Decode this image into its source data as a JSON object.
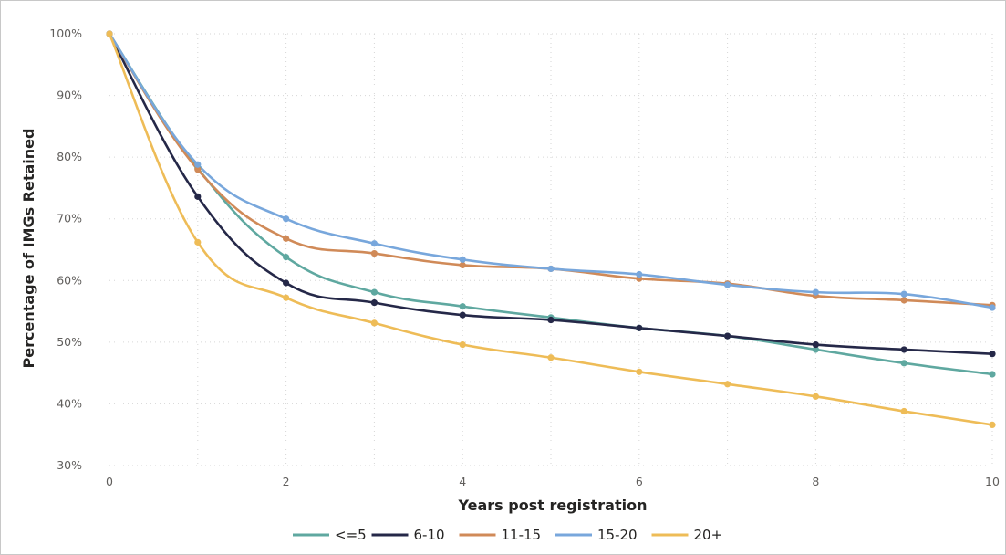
{
  "chart_data": {
    "type": "line",
    "title": "",
    "xlabel": "Years post registration",
    "ylabel": "Percentage of IMGs Retained",
    "xlim": [
      0,
      10
    ],
    "ylim": [
      30,
      100
    ],
    "x_ticks": [
      0,
      2,
      4,
      6,
      8,
      10
    ],
    "y_ticks": [
      30,
      40,
      50,
      60,
      70,
      80,
      90,
      100
    ],
    "y_tick_labels": [
      "30%",
      "40%",
      "50%",
      "60%",
      "70%",
      "80%",
      "90%",
      "100%"
    ],
    "grid": true,
    "legend_position": "bottom",
    "x": [
      0,
      1,
      2,
      3,
      4,
      5,
      6,
      7,
      8,
      9,
      10
    ],
    "series": [
      {
        "name": "<=5",
        "color": "#5fa8a0",
        "values": [
          100,
          78.2,
          63.8,
          58.1,
          55.8,
          54.0,
          52.3,
          51.0,
          48.8,
          46.6,
          44.8
        ]
      },
      {
        "name": "6-10",
        "color": "#252848",
        "values": [
          100,
          73.6,
          59.6,
          56.4,
          54.4,
          53.6,
          52.3,
          51.0,
          49.6,
          48.8,
          48.1
        ]
      },
      {
        "name": "11-15",
        "color": "#d08a58",
        "values": [
          100,
          78.0,
          66.8,
          64.4,
          62.5,
          61.9,
          60.3,
          59.5,
          57.5,
          56.8,
          56.0
        ]
      },
      {
        "name": "15-20",
        "color": "#78a7dc",
        "values": [
          100,
          78.8,
          70.0,
          66.0,
          63.4,
          61.9,
          61.0,
          59.3,
          58.1,
          57.8,
          55.6
        ]
      },
      {
        "name": "20+",
        "color": "#eebc57",
        "values": [
          100,
          66.2,
          57.2,
          53.1,
          49.6,
          47.5,
          45.2,
          43.2,
          41.2,
          38.8,
          36.6
        ]
      }
    ]
  }
}
